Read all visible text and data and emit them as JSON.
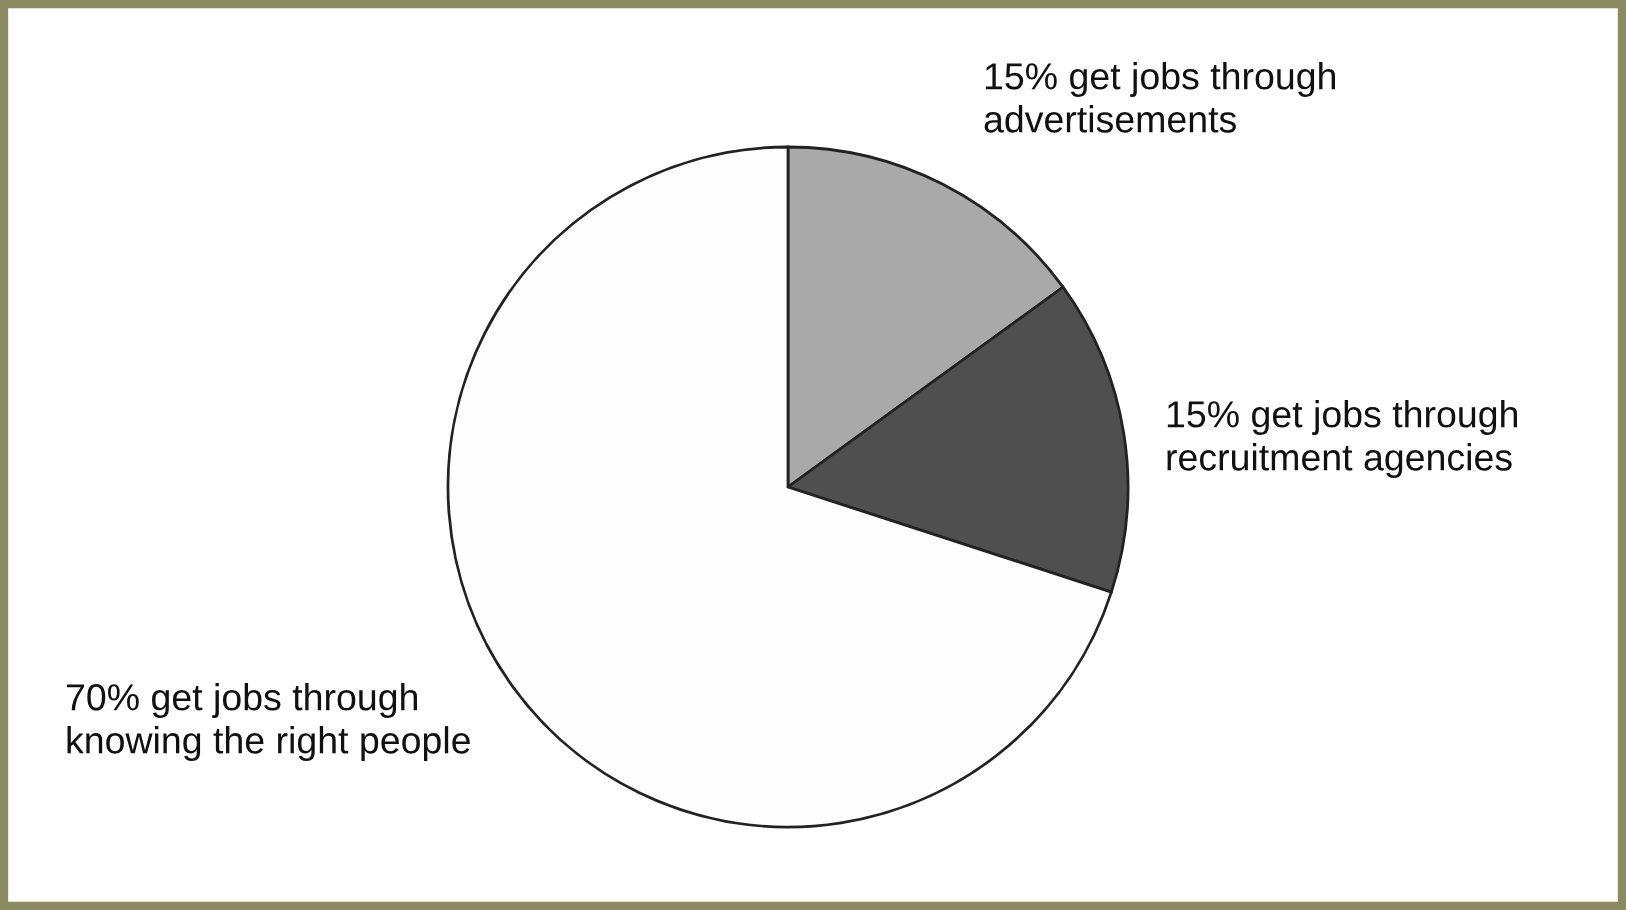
{
  "chart_data": {
    "type": "pie",
    "categories": [
      "get jobs through\nadvertisements",
      "get jobs through\nrecruitment agencies",
      "get jobs through\nknowing the right people"
    ],
    "values": [
      15,
      15,
      70
    ],
    "value_labels": [
      "15%",
      "15%",
      "70%"
    ],
    "colors": [
      "#a9a9a9",
      "#4f4f4f",
      "#fdfdfd"
    ],
    "legend": false
  }
}
